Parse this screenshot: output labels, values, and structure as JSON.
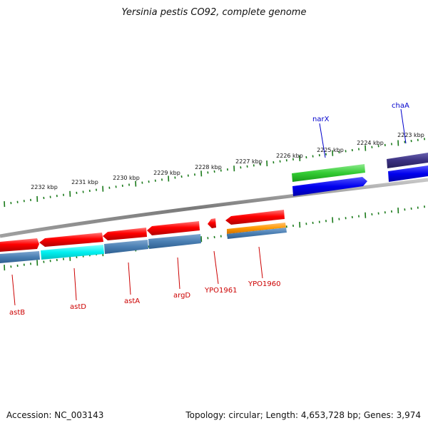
{
  "title": "Yersinia pestis CO92, complete genome",
  "footer": {
    "accession": "Accession: NC_003143",
    "summary": "Topology: circular; Length: 4,653,728 bp; Genes: 3,974"
  },
  "colors": {
    "backbone": "#8a8a8a",
    "tick": "#1a7a1a",
    "reverse_label": "#cc0000",
    "forward_label": "#0000cc"
  },
  "ticks": [
    "2232 kbp",
    "2231 kbp",
    "2230 kbp",
    "2229 kbp",
    "2228 kbp",
    "2227 kbp",
    "2226 kbp",
    "2225 kbp",
    "2224 kbp",
    "2223 kbp"
  ],
  "genes": [
    {
      "name": "astB",
      "strand": "reverse",
      "color": "#ff0000"
    },
    {
      "name": "astD",
      "strand": "reverse",
      "color": "#ff0000"
    },
    {
      "name": "astA",
      "strand": "reverse",
      "color": "#ff0000"
    },
    {
      "name": "argD",
      "strand": "reverse",
      "color": "#ff0000"
    },
    {
      "name": "YPO1961",
      "strand": "reverse",
      "color": "#ff0000"
    },
    {
      "name": "YPO1960",
      "strand": "reverse",
      "color": "#ff0000"
    },
    {
      "name": "narX",
      "strand": "forward",
      "color": "#33cc33"
    },
    {
      "name": "chaA",
      "strand": "forward",
      "color": "#3a3080"
    }
  ]
}
